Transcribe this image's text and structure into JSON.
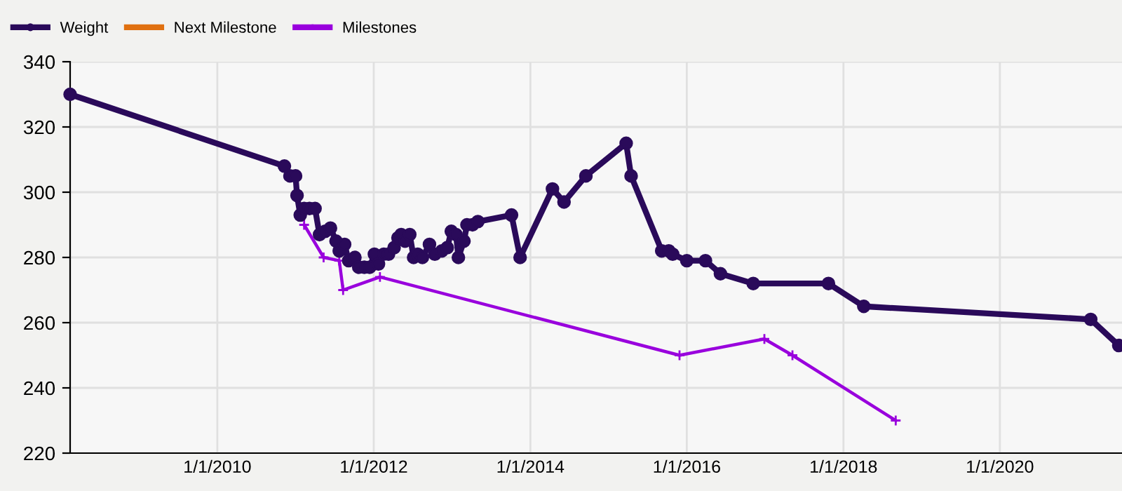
{
  "chart_data": {
    "type": "line",
    "xlim": [
      "2008-02-14",
      "2021-07-24"
    ],
    "ylim": [
      220,
      340
    ],
    "xticks": [
      {
        "value": "2010-01-01",
        "label": "1/1/2010"
      },
      {
        "value": "2012-01-01",
        "label": "1/1/2012"
      },
      {
        "value": "2014-01-01",
        "label": "1/1/2014"
      },
      {
        "value": "2016-01-01",
        "label": "1/1/2016"
      },
      {
        "value": "2018-01-01",
        "label": "1/1/2018"
      },
      {
        "value": "2020-01-01",
        "label": "1/1/2020"
      }
    ],
    "yticks": [
      220,
      240,
      260,
      280,
      300,
      320,
      340
    ],
    "grid": true,
    "legend": "top left",
    "series": [
      {
        "name": "Weight",
        "color": "#2a0a5a",
        "marker": "circle",
        "x": [
          "2008-02-14",
          "2010-11-10",
          "2010-12-06",
          "2011-01-01",
          "2011-01-08",
          "2011-01-23",
          "2011-02-10",
          "2011-03-07",
          "2011-04-02",
          "2011-04-23",
          "2011-05-19",
          "2011-06-13",
          "2011-07-09",
          "2011-07-24",
          "2011-08-18",
          "2011-09-06",
          "2011-10-05",
          "2011-10-23",
          "2011-11-18",
          "2011-12-13",
          "2012-01-04",
          "2012-01-23",
          "2012-02-17",
          "2012-03-10",
          "2012-04-05",
          "2012-04-23",
          "2012-05-08",
          "2012-05-26",
          "2012-06-17",
          "2012-07-05",
          "2012-07-24",
          "2012-08-15",
          "2012-09-17",
          "2012-10-12",
          "2012-11-14",
          "2012-12-09",
          "2012-12-28",
          "2013-01-19",
          "2013-01-30",
          "2013-02-25",
          "2013-03-11",
          "2013-04-06",
          "2013-05-01",
          "2013-10-05",
          "2013-11-14",
          "2014-04-14",
          "2014-06-07",
          "2014-09-17",
          "2015-03-24",
          "2015-04-16",
          "2015-09-06",
          "2015-10-09",
          "2015-10-27",
          "2016-01-01",
          "2016-03-28",
          "2016-06-06",
          "2016-11-06",
          "2017-10-23",
          "2018-04-06",
          "2021-02-28",
          "2021-07-09"
        ],
        "values": [
          330,
          308,
          305,
          305,
          299,
          293,
          295,
          295,
          295,
          287,
          288,
          289,
          285,
          282,
          284,
          279,
          280,
          277,
          277,
          277,
          281,
          278,
          281,
          281,
          283,
          286,
          287,
          285,
          287,
          280,
          281,
          280,
          284,
          281,
          282,
          283,
          288,
          287,
          280,
          285,
          290,
          290,
          291,
          293,
          280,
          301,
          297,
          305,
          315,
          305,
          282,
          282,
          281,
          279,
          279,
          275,
          272,
          272,
          265,
          261,
          253
        ]
      },
      {
        "name": "Next Milestone",
        "color": "#e07010",
        "marker": "none"
      },
      {
        "name": "Milestones",
        "color": "#9900dd",
        "marker": "cross",
        "x": [
          "2011-02-10",
          "2011-05-12",
          "2011-07-24",
          "2011-08-11",
          "2012-01-30",
          "2015-11-28",
          "2016-12-28",
          "2017-05-08",
          "2018-09-02"
        ],
        "values": [
          290,
          280,
          279,
          270,
          274,
          250,
          255,
          250,
          230
        ]
      }
    ]
  }
}
